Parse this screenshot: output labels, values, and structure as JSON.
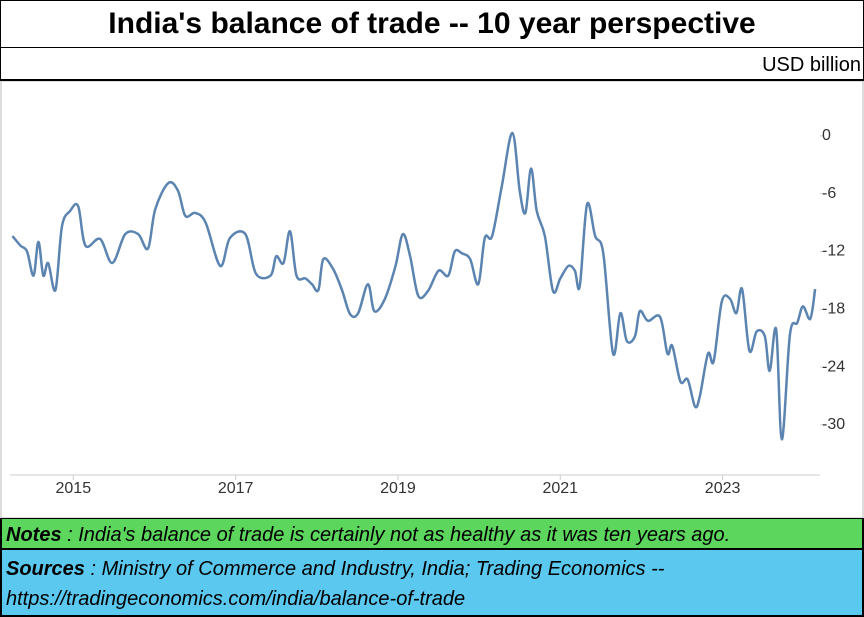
{
  "chart_data": {
    "type": "line",
    "title": "India's balance of trade -- 10 year perspective",
    "unit_label": "USD billion",
    "color": "#5b84b1",
    "x": [
      2014.25,
      2014.35,
      2014.43,
      2014.51,
      2014.57,
      2014.63,
      2014.69,
      2014.78,
      2014.86,
      2014.96,
      2015.06,
      2015.15,
      2015.33,
      2015.48,
      2015.64,
      2015.8,
      2015.92,
      2016.01,
      2016.17,
      2016.29,
      2016.38,
      2016.5,
      2016.63,
      2016.81,
      2016.93,
      2017.12,
      2017.25,
      2017.43,
      2017.5,
      2017.59,
      2017.67,
      2017.75,
      2017.86,
      2017.94,
      2018.02,
      2018.08,
      2018.2,
      2018.31,
      2018.41,
      2018.51,
      2018.63,
      2018.71,
      2018.84,
      2018.97,
      2019.06,
      2019.15,
      2019.25,
      2019.37,
      2019.5,
      2019.62,
      2019.7,
      2019.79,
      2019.89,
      2019.99,
      2020.07,
      2020.16,
      2020.28,
      2020.41,
      2020.5,
      2020.57,
      2020.64,
      2020.71,
      2020.81,
      2020.91,
      2021.0,
      2021.1,
      2021.18,
      2021.24,
      2021.33,
      2021.43,
      2021.53,
      2021.65,
      2021.74,
      2021.82,
      2021.92,
      2021.98,
      2022.08,
      2022.23,
      2022.32,
      2022.38,
      2022.48,
      2022.57,
      2022.66,
      2022.72,
      2022.82,
      2022.89,
      2022.99,
      2023.09,
      2023.17,
      2023.24,
      2023.33,
      2023.42,
      2023.52,
      2023.58,
      2023.66,
      2023.73,
      2023.83,
      2023.92,
      2023.99,
      2024.08,
      2024.14
    ],
    "values": [
      -10.4,
      -11.4,
      -12,
      -14.5,
      -11,
      -14.5,
      -13.2,
      -16,
      -9.4,
      -7.8,
      -7.3,
      -11.4,
      -10.7,
      -13.2,
      -10.2,
      -10.2,
      -11.7,
      -7.6,
      -4.9,
      -5.7,
      -8.3,
      -8,
      -9,
      -13.5,
      -10.6,
      -10.2,
      -14.3,
      -14.5,
      -12.5,
      -13.2,
      -9.9,
      -14.5,
      -14.8,
      -15.4,
      -16,
      -12.8,
      -13.8,
      -16,
      -18.5,
      -18.4,
      -15.4,
      -18.2,
      -16.9,
      -13.5,
      -10.2,
      -12.5,
      -16.6,
      -16.1,
      -14,
      -14.5,
      -12,
      -12.2,
      -12.8,
      -15.4,
      -10.6,
      -10.4,
      -5.2,
      0.3,
      -5.7,
      -8,
      -3.4,
      -7.8,
      -10.4,
      -16.1,
      -14.8,
      -13.5,
      -14,
      -15.6,
      -7.1,
      -10.4,
      -12.2,
      -22.6,
      -18.4,
      -21.3,
      -20.8,
      -18.2,
      -19.2,
      -18.8,
      -22.6,
      -21.8,
      -25.5,
      -25.3,
      -28.1,
      -27,
      -22.6,
      -23.4,
      -17.2,
      -16.9,
      -18.4,
      -15.9,
      -22.3,
      -20.3,
      -20.8,
      -24.4,
      -20.1,
      -31.5,
      -20.6,
      -19.4,
      -17.7,
      -19,
      -15.9
    ],
    "xlim": [
      2014.22,
      2024.2
    ],
    "xticks": [
      2015,
      2017,
      2019,
      2021,
      2023
    ],
    "ylim": [
      -35,
      3
    ],
    "yticks": [
      0,
      -6,
      -12,
      -18,
      -24,
      -30
    ],
    "grid": false
  },
  "notes": {
    "label": "Notes",
    "text": " : India's balance of trade is certainly not as healthy as it was ten years ago."
  },
  "sources": {
    "label": "Sources",
    "text": " : Ministry of Commerce and Industry, India; Trading Economics -- https://tradingeconomics.com/india/balance-of-trade"
  }
}
